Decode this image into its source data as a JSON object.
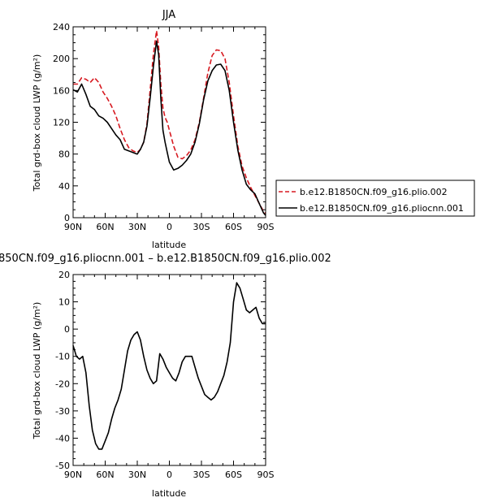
{
  "chart_data": [
    {
      "type": "line",
      "title": "JJA",
      "xlabel": "latitude",
      "ylabel": "Total grd-box cloud LWP (g/m²)",
      "x_axis_direction": "north-to-south",
      "x_tick_labels": [
        "90N",
        "60N",
        "30N",
        "0",
        "30S",
        "60S",
        "90S"
      ],
      "x_ticks": [
        90,
        60,
        30,
        0,
        -30,
        -60,
        -90
      ],
      "xlim": [
        90,
        -90
      ],
      "ylim": [
        0,
        240
      ],
      "y_ticks": [
        0,
        40,
        80,
        120,
        160,
        200,
        240
      ],
      "grid": false,
      "legend_position": "right-outside",
      "series": [
        {
          "name": "b.e12.B1850CN.f09_g16.plio.002",
          "color": "#d71920",
          "dash": "dashed",
          "x": [
            90,
            86,
            82,
            78,
            74,
            70,
            66,
            62,
            58,
            54,
            50,
            46,
            42,
            38,
            34,
            30,
            27,
            24,
            21,
            18,
            15,
            12,
            10,
            8,
            6,
            4,
            2,
            0,
            -4,
            -8,
            -12,
            -16,
            -20,
            -24,
            -28,
            -32,
            -36,
            -40,
            -44,
            -48,
            -52,
            -56,
            -60,
            -64,
            -68,
            -72,
            -76,
            -80,
            -84,
            -88,
            -90
          ],
          "y": [
            168,
            168,
            176,
            174,
            170,
            176,
            170,
            158,
            150,
            140,
            128,
            112,
            98,
            88,
            84,
            82,
            86,
            95,
            118,
            160,
            205,
            235,
            215,
            168,
            138,
            126,
            120,
            110,
            90,
            76,
            74,
            78,
            85,
            98,
            120,
            150,
            182,
            204,
            211,
            210,
            200,
            170,
            128,
            90,
            65,
            50,
            38,
            28,
            18,
            8,
            5
          ]
        },
        {
          "name": "b.e12.B1850CN.f09_g16.pliocnn.001",
          "color": "#000000",
          "dash": "solid",
          "x": [
            90,
            86,
            82,
            78,
            74,
            70,
            66,
            62,
            58,
            54,
            50,
            46,
            42,
            38,
            34,
            30,
            27,
            24,
            21,
            18,
            15,
            12,
            10,
            8,
            6,
            4,
            2,
            0,
            -4,
            -8,
            -12,
            -16,
            -20,
            -24,
            -28,
            -32,
            -36,
            -40,
            -44,
            -48,
            -52,
            -56,
            -60,
            -64,
            -68,
            -72,
            -76,
            -80,
            -84,
            -88,
            -90
          ],
          "y": [
            161,
            158,
            168,
            155,
            140,
            136,
            128,
            125,
            120,
            112,
            104,
            98,
            86,
            84,
            82,
            80,
            86,
            95,
            115,
            150,
            190,
            222,
            205,
            150,
            110,
            95,
            82,
            70,
            60,
            62,
            66,
            72,
            80,
            95,
            118,
            148,
            172,
            185,
            192,
            193,
            185,
            160,
            120,
            85,
            60,
            42,
            35,
            30,
            18,
            6,
            3
          ]
        }
      ]
    },
    {
      "type": "line",
      "title": "850CN.f09_g16.pliocnn.001 – b.e12.B1850CN.f09_g16.plio.002",
      "xlabel": "latitude",
      "ylabel": "Total grd-box cloud LWP (g/m²)",
      "x_axis_direction": "north-to-south",
      "x_tick_labels": [
        "90N",
        "60N",
        "30N",
        "0",
        "30S",
        "60S",
        "90S"
      ],
      "x_ticks": [
        90,
        60,
        30,
        0,
        -30,
        -60,
        -90
      ],
      "xlim": [
        90,
        -90
      ],
      "ylim": [
        -50,
        20
      ],
      "y_ticks": [
        -50,
        -40,
        -30,
        -20,
        -10,
        0,
        10,
        20
      ],
      "grid": false,
      "series": [
        {
          "color": "#000000",
          "dash": "solid",
          "x": [
            90,
            87,
            84,
            81,
            78,
            75,
            72,
            69,
            66,
            63,
            60,
            57,
            54,
            51,
            48,
            45,
            42,
            39,
            36,
            33,
            30,
            27,
            24,
            21,
            18,
            15,
            12,
            9,
            6,
            3,
            0,
            -3,
            -6,
            -9,
            -12,
            -15,
            -18,
            -21,
            -24,
            -27,
            -30,
            -33,
            -36,
            -39,
            -42,
            -45,
            -48,
            -51,
            -54,
            -57,
            -60,
            -63,
            -66,
            -69,
            -72,
            -75,
            -78,
            -81,
            -84,
            -87,
            -90
          ],
          "y": [
            -6,
            -10,
            -11,
            -10,
            -16,
            -28,
            -37,
            -42,
            -44,
            -44,
            -41,
            -38,
            -33,
            -29,
            -26,
            -22,
            -15,
            -8,
            -4,
            -2,
            -1,
            -4,
            -10,
            -15,
            -18,
            -20,
            -19,
            -9,
            -11,
            -14,
            -16,
            -18,
            -19,
            -16,
            -12,
            -10,
            -10,
            -10,
            -14,
            -18,
            -21,
            -24,
            -25,
            -26,
            -25,
            -23,
            -20,
            -17,
            -12,
            -5,
            10,
            17,
            15,
            11,
            7,
            6,
            7,
            8,
            4,
            2,
            2
          ]
        }
      ]
    }
  ]
}
